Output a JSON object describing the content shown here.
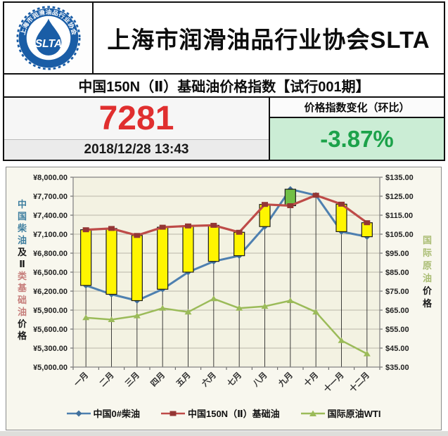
{
  "header": {
    "org_title": "上海市润滑油品行业协会SLTA",
    "logo": {
      "text": "SLTA",
      "ring_text": "上海市润滑油品行业协会",
      "ring_color": "#1a5da6"
    }
  },
  "subtitle": "中国150N（Ⅱ）基础油价格指数【试行001期】",
  "index_panel": {
    "value": "7281",
    "value_color": "#e02f2f",
    "timestamp": "2018/12/28 13:43",
    "change_label": "价格指数变化（环比）",
    "change_value": "-3.87%",
    "change_text_color": "#1ca24a",
    "change_bg_color": "#cbedd5"
  },
  "chart_data": {
    "type": "line",
    "subtype": "dual-axis lines with up/down bars (stock style) and drop lines",
    "categories": [
      "一月",
      "二月",
      "三月",
      "四月",
      "五月",
      "六月",
      "七月",
      "八月",
      "九月",
      "十月",
      "十一月",
      "十二月"
    ],
    "series": [
      {
        "name": "中国0#柴油",
        "axis": "left",
        "color": "#4e80b0",
        "marker": "diamond",
        "marker_color": "#41709c",
        "values": [
          6290,
          6150,
          6050,
          6230,
          6500,
          6670,
          6760,
          7220,
          7810,
          7715,
          7140,
          7060
        ]
      },
      {
        "name": "中国150N（Ⅱ）基础油",
        "axis": "left",
        "color": "#be4b48",
        "marker": "square",
        "marker_color": "#943634",
        "values": [
          7170,
          7190,
          7080,
          7210,
          7230,
          7240,
          7130,
          7570,
          7550,
          7715,
          7574,
          7281
        ]
      },
      {
        "name": "国际原油WTI",
        "axis": "right",
        "color": "#9bbb59",
        "marker": "triangle",
        "marker_color": "#9bbb59",
        "values": [
          61,
          60,
          62,
          66,
          64,
          71,
          66,
          67,
          70,
          64,
          49,
          42
        ]
      }
    ],
    "updown_bars": {
      "between": [
        "中国150N（Ⅱ）基础油",
        "中国0#柴油"
      ],
      "up_color": "#71bf45",
      "down_color": "#fff500",
      "border_color": "#1a1a1a"
    },
    "left_axis": {
      "min": 5000,
      "max": 8000,
      "step": 300,
      "labels": [
        "¥8,000.00",
        "¥7,700.00",
        "¥7,400.00",
        "¥7,100.00",
        "¥6,800.00",
        "¥6,500.00",
        "¥6,200.00",
        "¥5,900.00",
        "¥5,600.00",
        "¥5,300.00",
        "¥5,000.00"
      ],
      "title_chars": [
        {
          "ch": "中",
          "color": "#3e7e9f"
        },
        {
          "ch": "国",
          "color": "#3e7e9f"
        },
        {
          "ch": "柴",
          "color": "#3e7e9f"
        },
        {
          "ch": "油",
          "color": "#3e7e9f"
        },
        {
          "ch": "及",
          "color": "#1a1a1a"
        },
        {
          "ch": "Ⅱ",
          "color": "#1a1a1a"
        },
        {
          "ch": "类",
          "color": "#c67e7b"
        },
        {
          "ch": "基",
          "color": "#c67e7b"
        },
        {
          "ch": "础",
          "color": "#c67e7b"
        },
        {
          "ch": "油",
          "color": "#c67e7b"
        },
        {
          "ch": "价",
          "color": "#1a1a1a"
        },
        {
          "ch": "格",
          "color": "#1a1a1a"
        }
      ]
    },
    "right_axis": {
      "min": 35,
      "max": 135,
      "step": 10,
      "labels": [
        "$135.00",
        "$125.00",
        "$115.00",
        "$105.00",
        "$95.00",
        "$85.00",
        "$75.00",
        "$65.00",
        "$55.00",
        "$45.00",
        "$35.00"
      ],
      "title_chars": [
        {
          "ch": "国",
          "color": "#a9bc72"
        },
        {
          "ch": "际",
          "color": "#a9bc72"
        },
        {
          "ch": "原",
          "color": "#a9bc72"
        },
        {
          "ch": "油",
          "color": "#a9bc72"
        },
        {
          "ch": "价",
          "color": "#1a1a1a"
        },
        {
          "ch": "格",
          "color": "#1a1a1a"
        }
      ]
    },
    "grid": true,
    "legend_position": "bottom",
    "plot_bg": "#f3f2e2",
    "chart_bg": "#f8f7ee"
  }
}
